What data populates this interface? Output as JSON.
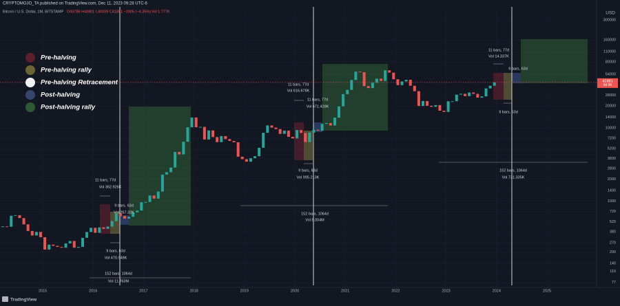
{
  "chart_data": {
    "type": "candlestick",
    "header": "CRYPTOMOJO_TA published on TradingView.com, Dec 11, 2023 09:28 UTC-6",
    "title": "Bitcoin / U.S. Dollar, 1M, BITSTAMP",
    "ohlc_text": "O43786 H43801 L40039 C41881 −1905 (−4.35%)",
    "volume_text": "Vol 1.777K",
    "y_unit": "USD",
    "price_tag_sub": "6d 9h",
    "footer": "TradingView",
    "x": [
      2014.208,
      2014.292,
      2014.375,
      2014.458,
      2014.542,
      2014.625,
      2014.708,
      2014.792,
      2014.875,
      2014.958,
      2015.042,
      2015.125,
      2015.208,
      2015.292,
      2015.375,
      2015.458,
      2015.542,
      2015.625,
      2015.708,
      2015.792,
      2015.875,
      2015.958,
      2016.042,
      2016.125,
      2016.208,
      2016.292,
      2016.375,
      2016.458,
      2016.542,
      2016.625,
      2016.708,
      2016.792,
      2016.875,
      2016.958,
      2017.042,
      2017.125,
      2017.208,
      2017.292,
      2017.375,
      2017.458,
      2017.542,
      2017.625,
      2017.708,
      2017.792,
      2017.875,
      2017.958,
      2018.042,
      2018.125,
      2018.208,
      2018.292,
      2018.375,
      2018.458,
      2018.542,
      2018.625,
      2018.708,
      2018.792,
      2018.875,
      2018.958,
      2019.042,
      2019.125,
      2019.208,
      2019.292,
      2019.375,
      2019.458,
      2019.542,
      2019.625,
      2019.708,
      2019.792,
      2019.875,
      2019.958,
      2020.042,
      2020.125,
      2020.208,
      2020.292,
      2020.375,
      2020.458,
      2020.542,
      2020.625,
      2020.708,
      2020.792,
      2020.875,
      2020.958,
      2021.042,
      2021.125,
      2021.208,
      2021.292,
      2021.375,
      2021.458,
      2021.542,
      2021.625,
      2021.708,
      2021.792,
      2021.875,
      2021.958,
      2022.042,
      2022.125,
      2022.208,
      2022.292,
      2022.375,
      2022.458,
      2022.542,
      2022.625,
      2022.708,
      2022.792,
      2022.875,
      2022.958,
      2023.042,
      2023.125,
      2023.208,
      2023.292,
      2023.375,
      2023.458,
      2023.542,
      2023.625,
      2023.708,
      2023.792,
      2023.875,
      2023.958
    ],
    "values": [
      450,
      445,
      630,
      640,
      585,
      480,
      390,
      338,
      378,
      320,
      217,
      254,
      244,
      236,
      230,
      263,
      284,
      230,
      236,
      314,
      377,
      430,
      368,
      437,
      416,
      448,
      531,
      673,
      624,
      575,
      609,
      700,
      742,
      963,
      970,
      1190,
      1080,
      1350,
      2300,
      2480,
      2875,
      4700,
      4340,
      6470,
      10200,
      13860,
      10220,
      10330,
      6930,
      9240,
      7490,
      6390,
      7730,
      7030,
      6630,
      6370,
      4040,
      3740,
      3450,
      3850,
      4100,
      5350,
      8570,
      10820,
      10090,
      9630,
      8290,
      9200,
      7550,
      7190,
      9350,
      8540,
      6410,
      8630,
      9450,
      9140,
      11350,
      11650,
      10780,
      13800,
      19700,
      28990,
      33110,
      45240,
      58800,
      57750,
      37330,
      35040,
      41460,
      47130,
      43830,
      61320,
      57000,
      46300,
      38480,
      43190,
      45540,
      37710,
      31790,
      19940,
      23300,
      20050,
      19430,
      20490,
      17170,
      16540,
      23130,
      23150,
      28470,
      29270,
      27220,
      30480,
      29230,
      25940,
      26970,
      34640,
      37720,
      41881
    ],
    "up_color": "#26a69a",
    "down_color": "#ef5350",
    "log_scale": true,
    "grid": true,
    "xlim": [
      2014.153,
      2025.984
    ],
    "xticks": [
      2015,
      2016,
      2017,
      2018,
      2019,
      2020,
      2021,
      2022,
      2023,
      2024,
      2025
    ],
    "ylim": [
      75,
      380000
    ],
    "yticks": [
      300000,
      160000,
      110000,
      80000,
      54000,
      28000,
      20000,
      14000,
      10000,
      7200,
      5200,
      3800,
      2800,
      2000,
      1400,
      1000,
      720,
      520,
      380,
      270,
      200,
      140,
      110,
      77
    ],
    "legend": [
      {
        "name": "Pre-halving",
        "color": "#5c1f2b"
      },
      {
        "name": "Pre-halving rally",
        "color": "#6b6536"
      },
      {
        "name": "Pre-halving Retracement",
        "color": "#f0f0f0"
      },
      {
        "name": "Post-halving",
        "color": "#34466e"
      },
      {
        "name": "Post-halving rally",
        "color": "#2c5a34"
      }
    ],
    "annotations": [
      {
        "text": "11 bars, 77d"
      },
      {
        "text": "Vol 362.926K"
      },
      {
        "text": "9 bars, 63d"
      },
      {
        "text": "Vol 267.32K"
      },
      {
        "text": "9 bars, 63d"
      },
      {
        "text": "Vol 470.948K"
      },
      {
        "text": "152 bars, 1064d"
      },
      {
        "text": "Vol 11.763M"
      },
      {
        "text": "11 bars, 77d"
      },
      {
        "text": "Vol 616.678K"
      },
      {
        "text": "11 bars, 77d"
      },
      {
        "text": "Vol 671.428K"
      },
      {
        "text": "9 bars, 63d"
      },
      {
        "text": "Vol 995.213K"
      },
      {
        "text": "152 bars, 1064d"
      },
      {
        "text": "Vol 8.004M"
      },
      {
        "text": "11 bars, 77d"
      },
      {
        "text": "Vol 14.337K"
      },
      {
        "text": "9 bars, 63d"
      },
      {
        "text": "9 bars, 63d"
      },
      {
        "text": "152 bars, 1064d"
      },
      {
        "text": "Vol 731.335K"
      }
    ]
  }
}
